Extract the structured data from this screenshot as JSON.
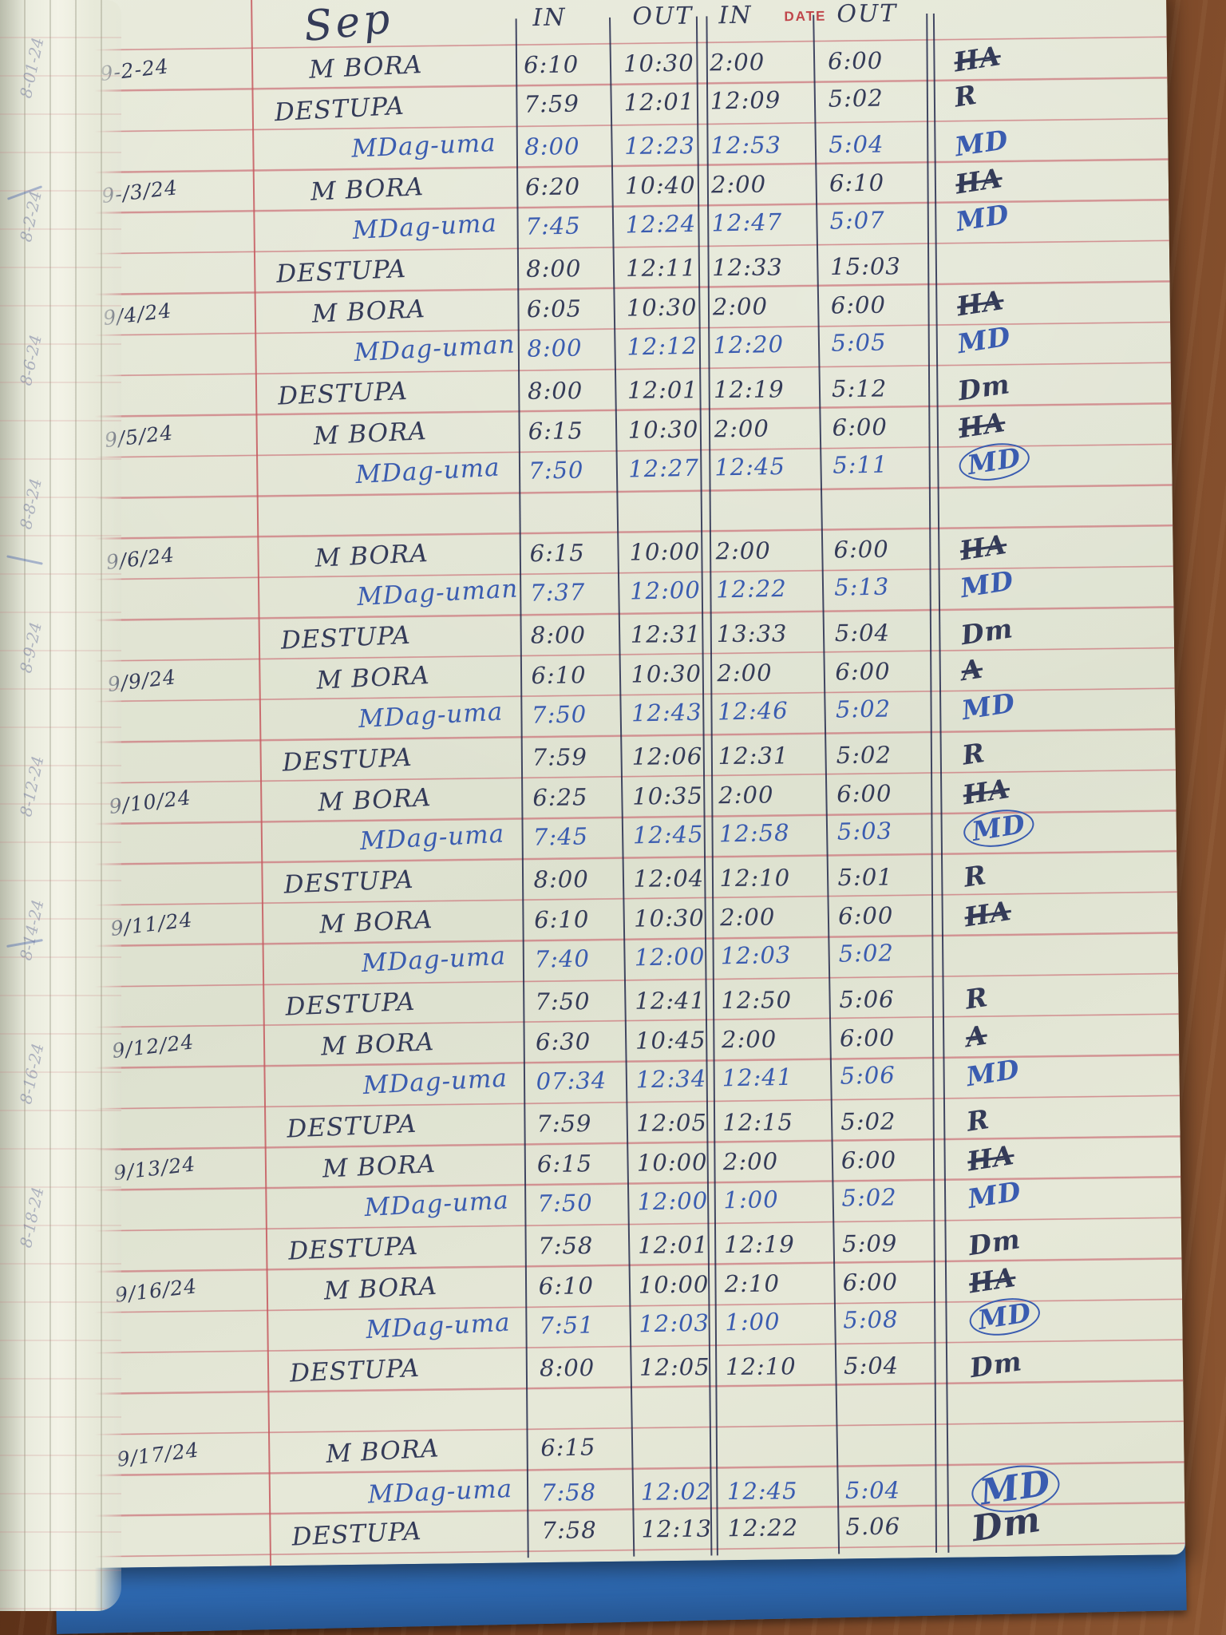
{
  "ledger": {
    "month_label": "Sep",
    "printed_date_label": "DATE",
    "headers": {
      "in_morning": "IN",
      "out_morning": "OUT",
      "in_afternoon": "IN",
      "out_afternoon": "OUT"
    },
    "rows": [
      {
        "date": "9-2-24",
        "name": "M BORA",
        "in1": "6:10",
        "out1": "10:30",
        "in2": "2:00",
        "out2": "6:00",
        "sig": "HA",
        "ss": "struck",
        "ink": "d"
      },
      {
        "date": "",
        "name": "DESTUPA",
        "in1": "7:59",
        "out1": "12:01",
        "in2": "12:09",
        "out2": "5:02",
        "sig": "R",
        "ss": "",
        "ink": "d"
      },
      {
        "date": "",
        "name": "MDag-uma",
        "in1": "8:00",
        "out1": "12:23",
        "in2": "12:53",
        "out2": "5:04",
        "sig": "MD",
        "ss": "",
        "ink": "b"
      },
      {
        "date": "9-/3/24",
        "name": "M BORA",
        "in1": "6:20",
        "out1": "10:40",
        "in2": "2:00",
        "out2": "6:10",
        "sig": "HA",
        "ss": "struck",
        "ink": "d"
      },
      {
        "date": "",
        "name": "MDag-uma",
        "in1": "7:45",
        "out1": "12:24",
        "in2": "12:47",
        "out2": "5:07",
        "sig": "MD",
        "ss": "",
        "ink": "b"
      },
      {
        "date": "",
        "name": "DESTUPA",
        "in1": "8:00",
        "out1": "12:11",
        "in2": "12:33",
        "out2": "15:03",
        "sig": "",
        "ss": "",
        "ink": "d"
      },
      {
        "date": "9/4/24",
        "name": "M BORA",
        "in1": "6:05",
        "out1": "10:30",
        "in2": "2:00",
        "out2": "6:00",
        "sig": "HA",
        "ss": "struck",
        "ink": "d"
      },
      {
        "date": "",
        "name": "MDag-uman",
        "in1": "8:00",
        "out1": "12:12",
        "in2": "12:20",
        "out2": "5:05",
        "sig": "MD",
        "ss": "",
        "ink": "b"
      },
      {
        "date": "",
        "name": "DESTUPA",
        "in1": "8:00",
        "out1": "12:01",
        "in2": "12:19",
        "out2": "5:12",
        "sig": "Dm",
        "ss": "",
        "ink": "d"
      },
      {
        "date": "9/5/24",
        "name": "M BORA",
        "in1": "6:15",
        "out1": "10:30",
        "in2": "2:00",
        "out2": "6:00",
        "sig": "HA",
        "ss": "struck",
        "ink": "d"
      },
      {
        "date": "",
        "name": "MDag-uma",
        "in1": "7:50",
        "out1": "12:27",
        "in2": "12:45",
        "out2": "5:11",
        "sig": "MD",
        "ss": "circled",
        "ink": "b"
      },
      {
        "date": "",
        "name": "",
        "in1": "",
        "out1": "",
        "in2": "",
        "out2": "",
        "sig": "",
        "ss": "",
        "ink": "d"
      },
      {
        "date": "9/6/24",
        "name": "M BORA",
        "in1": "6:15",
        "out1": "10:00",
        "in2": "2:00",
        "out2": "6:00",
        "sig": "HA",
        "ss": "struck",
        "ink": "d"
      },
      {
        "date": "",
        "name": "MDag-uman",
        "in1": "7:37",
        "out1": "12:00",
        "in2": "12:22",
        "out2": "5:13",
        "sig": "MD",
        "ss": "",
        "ink": "b"
      },
      {
        "date": "",
        "name": "DESTUPA",
        "in1": "8:00",
        "out1": "12:31",
        "in2": "13:33",
        "out2": "5:04",
        "sig": "Dm",
        "ss": "",
        "ink": "d"
      },
      {
        "date": "9/9/24",
        "name": "M BORA",
        "in1": "6:10",
        "out1": "10:30",
        "in2": "2:00",
        "out2": "6:00",
        "sig": "A",
        "ss": "struck",
        "ink": "d"
      },
      {
        "date": "",
        "name": "MDag-uma",
        "in1": "7:50",
        "out1": "12:43",
        "in2": "12:46",
        "out2": "5:02",
        "sig": "MD",
        "ss": "",
        "ink": "b"
      },
      {
        "date": "",
        "name": "DESTUPA",
        "in1": "7:59",
        "out1": "12:06",
        "in2": "12:31",
        "out2": "5:02",
        "sig": "R",
        "ss": "",
        "ink": "d"
      },
      {
        "date": "9/10/24",
        "name": "M BORA",
        "in1": "6:25",
        "out1": "10:35",
        "in2": "2:00",
        "out2": "6:00",
        "sig": "HA",
        "ss": "struck",
        "ink": "d"
      },
      {
        "date": "",
        "name": "MDag-uma",
        "in1": "7:45",
        "out1": "12:45",
        "in2": "12:58",
        "out2": "5:03",
        "sig": "MD",
        "ss": "circled",
        "ink": "b"
      },
      {
        "date": "",
        "name": "DESTUPA",
        "in1": "8:00",
        "out1": "12:04",
        "in2": "12:10",
        "out2": "5:01",
        "sig": "R",
        "ss": "",
        "ink": "d"
      },
      {
        "date": "9/11/24",
        "name": "M BORA",
        "in1": "6:10",
        "out1": "10:30",
        "in2": "2:00",
        "out2": "6:00",
        "sig": "HA",
        "ss": "struck",
        "ink": "d"
      },
      {
        "date": "",
        "name": "MDag-uma",
        "in1": "7:40",
        "out1": "12:00",
        "in2": "12:03",
        "out2": "5:02",
        "sig": "",
        "ss": "",
        "ink": "b"
      },
      {
        "date": "",
        "name": "DESTUPA",
        "in1": "7:50",
        "out1": "12:41",
        "in2": "12:50",
        "out2": "5:06",
        "sig": "R",
        "ss": "",
        "ink": "d"
      },
      {
        "date": "9/12/24",
        "name": "M BORA",
        "in1": "6:30",
        "out1": "10:45",
        "in2": "2:00",
        "out2": "6:00",
        "sig": "A",
        "ss": "struck",
        "ink": "d"
      },
      {
        "date": "",
        "name": "MDag-uma",
        "in1": "07:34",
        "out1": "12:34",
        "in2": "12:41",
        "out2": "5:06",
        "sig": "MD",
        "ss": "",
        "ink": "b"
      },
      {
        "date": "",
        "name": "DESTUPA",
        "in1": "7:59",
        "out1": "12:05",
        "in2": "12:15",
        "out2": "5:02",
        "sig": "R",
        "ss": "",
        "ink": "d"
      },
      {
        "date": "9/13/24",
        "name": "M BORA",
        "in1": "6:15",
        "out1": "10:00",
        "in2": "2:00",
        "out2": "6:00",
        "sig": "HA",
        "ss": "struck",
        "ink": "d"
      },
      {
        "date": "",
        "name": "MDag-uma",
        "in1": "7:50",
        "out1": "12:00",
        "in2": "1:00",
        "out2": "5:02",
        "sig": "MD",
        "ss": "",
        "ink": "b"
      },
      {
        "date": "",
        "name": "DESTUPA",
        "in1": "7:58",
        "out1": "12:01",
        "in2": "12:19",
        "out2": "5:09",
        "sig": "Dm",
        "ss": "",
        "ink": "d"
      },
      {
        "date": "9/16/24",
        "name": "M BORA",
        "in1": "6:10",
        "out1": "10:00",
        "in2": "2:10",
        "out2": "6:00",
        "sig": "HA",
        "ss": "struck",
        "ink": "d"
      },
      {
        "date": "",
        "name": "MDag-uma",
        "in1": "7:51",
        "out1": "12:03",
        "in2": "1:00",
        "out2": "5:08",
        "sig": "MD",
        "ss": "circled",
        "ink": "b"
      },
      {
        "date": "",
        "name": "DESTUPA",
        "in1": "8:00",
        "out1": "12:05",
        "in2": "12:10",
        "out2": "5:04",
        "sig": "Dm",
        "ss": "",
        "ink": "d"
      },
      {
        "date": "",
        "name": "",
        "in1": "",
        "out1": "",
        "in2": "",
        "out2": "",
        "sig": "",
        "ss": "",
        "ink": "d"
      },
      {
        "date": "9/17/24",
        "name": "M BORA",
        "in1": "6:15",
        "out1": "",
        "in2": "",
        "out2": "",
        "sig": "",
        "ss": "",
        "ink": "d"
      },
      {
        "date": "",
        "name": "MDag-uma",
        "in1": "7:58",
        "out1": "12:02",
        "in2": "12:45",
        "out2": "5:04",
        "sig": "MD",
        "ss": "big-circled",
        "ink": "b"
      },
      {
        "date": "",
        "name": "DESTUPA",
        "in1": "7:58",
        "out1": "12:13",
        "in2": "12:22",
        "out2": "5.06",
        "sig": "Dm",
        "ss": "big",
        "ink": "d"
      }
    ]
  },
  "edge_dates": [
    "8-01-24",
    "8-2-24",
    "8-6-24",
    "8-8-24",
    "8-9-24",
    "8-12-24",
    "8-14-24",
    "8-16-24",
    "8-18-24"
  ],
  "colors": {
    "ink_dark": "#343b58",
    "ink_blue": "#3a5cb0",
    "print_red": "#c0464b",
    "cover_blue": "#2e6ab3",
    "rule_pink": "rgba(204,118,124,0.75)",
    "margin_red": "rgba(198,88,94,0.85)"
  }
}
